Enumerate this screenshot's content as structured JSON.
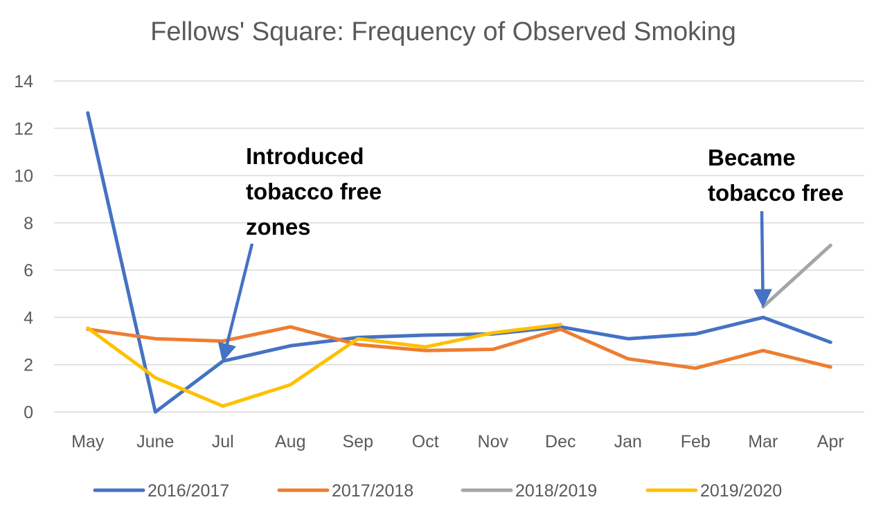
{
  "chart_data": {
    "type": "line",
    "title": "Fellows' Square: Frequency of Observed Smoking",
    "xlabel": "",
    "ylabel": "",
    "categories": [
      "May",
      "June",
      "Jul",
      "Aug",
      "Sep",
      "Oct",
      "Nov",
      "Dec",
      "Jan",
      "Feb",
      "Mar",
      "Apr"
    ],
    "ylim": [
      0,
      14
    ],
    "yticks": [
      0,
      2,
      4,
      6,
      8,
      10,
      12,
      14
    ],
    "grid": true,
    "legend_position": "bottom",
    "series": [
      {
        "name": "2016/2017",
        "color": "#4472c4",
        "values": [
          12.65,
          0,
          2.15,
          2.8,
          3.15,
          3.25,
          3.3,
          3.6,
          3.1,
          3.3,
          4.0,
          2.95
        ]
      },
      {
        "name": "2017/2018",
        "color": "#ed7d31",
        "values": [
          3.5,
          3.1,
          3.0,
          3.6,
          2.85,
          2.6,
          2.65,
          3.5,
          2.25,
          1.85,
          2.6,
          1.9
        ]
      },
      {
        "name": "2018/2019",
        "color": "#a5a5a5",
        "values": [
          null,
          null,
          null,
          null,
          null,
          null,
          null,
          null,
          null,
          null,
          4.45,
          7.05
        ]
      },
      {
        "name": "2019/2020",
        "color": "#ffc000",
        "values": [
          3.55,
          1.45,
          0.25,
          1.15,
          3.1,
          2.75,
          3.35,
          3.7,
          null,
          null,
          null,
          null
        ]
      }
    ],
    "annotations": [
      {
        "lines": [
          "Introduced",
          "tobacco free",
          "zones"
        ],
        "target_category": "Jul",
        "target_value": 2.15
      },
      {
        "lines": [
          "Became",
          "tobacco free"
        ],
        "target_category": "Mar",
        "target_value": 4.45
      }
    ]
  }
}
